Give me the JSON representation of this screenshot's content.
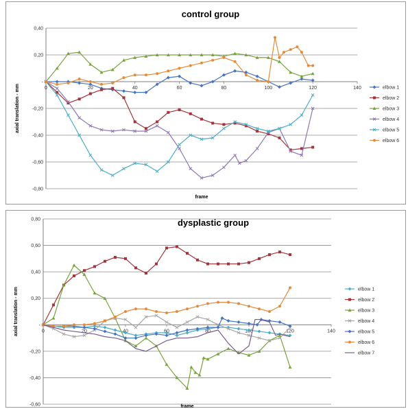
{
  "chart_data": [
    {
      "type": "line",
      "title": "control group",
      "xlabel": "frame",
      "ylabel": "axial translation - mm",
      "xlim": [
        0,
        140
      ],
      "ylim": [
        -0.8,
        0.4
      ],
      "x_ticks": [
        "0",
        "20",
        "40",
        "60",
        "80",
        "100",
        "120",
        "140"
      ],
      "y_ticks": [
        "0,40",
        "0,20",
        "-",
        "-0,20",
        "-0,40",
        "-0,60",
        "-0,80"
      ],
      "grid": "horizontal",
      "legend": "right",
      "series": [
        {
          "name": "elbow 1",
          "color": "#4472c4",
          "marker": "diamond",
          "x": [
            0,
            5,
            10,
            15,
            20,
            25,
            30,
            35,
            40,
            45,
            50,
            55,
            60,
            65,
            70,
            75,
            80,
            85,
            90,
            95,
            100,
            105,
            110,
            115,
            120
          ],
          "y": [
            0,
            0,
            0,
            -0.01,
            -0.02,
            -0.05,
            -0.06,
            -0.07,
            -0.08,
            -0.08,
            -0.02,
            0.03,
            0.04,
            -0.01,
            -0.03,
            0.0,
            0.05,
            0.08,
            0.07,
            0.04,
            0.0,
            -0.04,
            -0.01,
            0.02,
            0.01
          ]
        },
        {
          "name": "elbow 2",
          "color": "#a5333a",
          "marker": "square",
          "x": [
            0,
            5,
            10,
            15,
            20,
            25,
            30,
            35,
            40,
            45,
            50,
            55,
            60,
            65,
            70,
            75,
            80,
            85,
            90,
            95,
            100,
            105,
            110,
            115,
            120
          ],
          "y": [
            0,
            -0.08,
            -0.16,
            -0.13,
            -0.09,
            -0.06,
            -0.05,
            -0.12,
            -0.3,
            -0.35,
            -0.3,
            -0.23,
            -0.21,
            -0.24,
            -0.28,
            -0.31,
            -0.32,
            -0.31,
            -0.33,
            -0.37,
            -0.39,
            -0.42,
            -0.51,
            -0.5,
            -0.49
          ]
        },
        {
          "name": "elbow 3",
          "color": "#77a33a",
          "marker": "triangle",
          "x": [
            0,
            5,
            10,
            15,
            20,
            25,
            30,
            35,
            40,
            45,
            50,
            55,
            60,
            65,
            70,
            75,
            80,
            85,
            90,
            95,
            100,
            105,
            110,
            115,
            120
          ],
          "y": [
            0,
            0.1,
            0.21,
            0.22,
            0.13,
            0.07,
            0.09,
            0.16,
            0.18,
            0.19,
            0.2,
            0.2,
            0.2,
            0.2,
            0.2,
            0.2,
            0.19,
            0.21,
            0.2,
            0.18,
            0.18,
            0.15,
            0.07,
            0.04,
            0.06
          ]
        },
        {
          "name": "elbow 4",
          "color": "#8e76b4",
          "marker": "x",
          "x": [
            0,
            5,
            10,
            15,
            20,
            25,
            30,
            35,
            40,
            45,
            50,
            55,
            60,
            65,
            70,
            75,
            80,
            85,
            87,
            90,
            95,
            100,
            105,
            110,
            115,
            120
          ],
          "y": [
            0,
            -0.05,
            -0.15,
            -0.27,
            -0.33,
            -0.36,
            -0.37,
            -0.36,
            -0.37,
            -0.37,
            -0.33,
            -0.38,
            -0.5,
            -0.65,
            -0.72,
            -0.7,
            -0.64,
            -0.55,
            -0.61,
            -0.59,
            -0.5,
            -0.38,
            -0.35,
            -0.52,
            -0.55,
            -0.2
          ]
        },
        {
          "name": "elbow 5",
          "color": "#4bacc6",
          "marker": "x",
          "x": [
            0,
            5,
            10,
            15,
            20,
            25,
            30,
            35,
            40,
            45,
            50,
            55,
            60,
            65,
            70,
            75,
            80,
            85,
            90,
            95,
            100,
            105,
            110,
            115,
            120
          ],
          "y": [
            0,
            -0.1,
            -0.25,
            -0.4,
            -0.55,
            -0.66,
            -0.7,
            -0.65,
            -0.61,
            -0.62,
            -0.67,
            -0.6,
            -0.47,
            -0.4,
            -0.43,
            -0.42,
            -0.35,
            -0.3,
            -0.32,
            -0.35,
            -0.37,
            -0.35,
            -0.32,
            -0.25,
            -0.1
          ]
        },
        {
          "name": "elbow 6",
          "color": "#e48b3b",
          "marker": "circle",
          "x": [
            0,
            5,
            10,
            15,
            20,
            25,
            30,
            35,
            40,
            45,
            50,
            55,
            60,
            65,
            70,
            75,
            80,
            85,
            90,
            95,
            100,
            103,
            105,
            107,
            110,
            113,
            115,
            118,
            120
          ],
          "y": [
            0,
            -0.02,
            -0.01,
            0.02,
            0.0,
            -0.02,
            -0.01,
            0.03,
            0.05,
            0.05,
            0.06,
            0.08,
            0.1,
            0.12,
            0.14,
            0.16,
            0.18,
            0.15,
            0.05,
            0.01,
            0.0,
            0.33,
            0.18,
            0.22,
            0.24,
            0.26,
            0.22,
            0.12,
            0.12
          ]
        }
      ]
    },
    {
      "type": "line",
      "title": "dysplastic group",
      "xlabel": "frame",
      "ylabel": "axial translation - mm",
      "xlim": [
        0,
        140
      ],
      "ylim": [
        -0.6,
        0.8
      ],
      "x_ticks": [
        "0",
        "20",
        "40",
        "60",
        "80",
        "100",
        "120",
        "140"
      ],
      "y_ticks": [
        "0,80",
        "0,60",
        "0,40",
        "0,20",
        "-",
        "-0,20",
        "-0,40",
        "-0,60"
      ],
      "grid": "horizontal",
      "legend": "right",
      "series": [
        {
          "name": "elbow 1",
          "color": "#4bacc6",
          "marker": "diamond",
          "x": [
            0,
            5,
            10,
            15,
            20,
            25,
            30,
            35,
            40,
            45,
            50,
            55,
            60,
            65,
            70,
            75,
            80,
            85,
            90,
            95,
            100,
            105,
            110,
            115,
            120
          ],
          "y": [
            0,
            -0.01,
            -0.02,
            -0.02,
            -0.02,
            -0.01,
            -0.02,
            -0.04,
            -0.06,
            -0.08,
            -0.07,
            -0.06,
            -0.06,
            -0.08,
            -0.06,
            -0.04,
            -0.03,
            -0.02,
            -0.02,
            -0.03,
            -0.04,
            -0.05,
            -0.06,
            -0.07,
            -0.08
          ]
        },
        {
          "name": "elbow 2",
          "color": "#a5333a",
          "marker": "square",
          "x": [
            0,
            5,
            10,
            15,
            20,
            25,
            30,
            35,
            40,
            45,
            50,
            55,
            60,
            65,
            70,
            75,
            80,
            85,
            90,
            95,
            100,
            105,
            110,
            115,
            120
          ],
          "y": [
            0,
            0.15,
            0.3,
            0.37,
            0.41,
            0.44,
            0.48,
            0.51,
            0.5,
            0.43,
            0.39,
            0.46,
            0.58,
            0.59,
            0.54,
            0.49,
            0.46,
            0.46,
            0.46,
            0.46,
            0.47,
            0.5,
            0.53,
            0.55,
            0.53
          ]
        },
        {
          "name": "elbow 3",
          "color": "#77a33a",
          "marker": "triangle",
          "x": [
            0,
            5,
            10,
            15,
            20,
            25,
            30,
            35,
            40,
            45,
            50,
            55,
            60,
            65,
            70,
            72,
            74,
            76,
            78,
            80,
            85,
            90,
            95,
            100,
            105,
            110,
            115,
            120
          ],
          "y": [
            0,
            0.05,
            0.3,
            0.45,
            0.38,
            0.24,
            0.2,
            0.05,
            -0.12,
            -0.16,
            -0.1,
            -0.16,
            -0.3,
            -0.4,
            -0.48,
            -0.32,
            -0.36,
            -0.38,
            -0.25,
            -0.26,
            -0.22,
            -0.18,
            -0.21,
            -0.23,
            -0.2,
            -0.12,
            -0.08,
            -0.32
          ]
        },
        {
          "name": "elbow 4",
          "color": "#a6a6a6",
          "marker": "x",
          "x": [
            0,
            5,
            10,
            15,
            20,
            25,
            30,
            35,
            40,
            45,
            50,
            55,
            60,
            65,
            70,
            75,
            80,
            85,
            90,
            95,
            100,
            105,
            110,
            115,
            120
          ],
          "y": [
            0,
            -0.03,
            -0.07,
            -0.09,
            -0.08,
            -0.04,
            0.03,
            0.05,
            0.04,
            -0.02,
            0.06,
            0.07,
            0.02,
            -0.02,
            0.02,
            0.06,
            0.04,
            0.0,
            -0.03,
            -0.06,
            -0.08,
            -0.1,
            -0.12,
            -0.1,
            -0.02
          ]
        },
        {
          "name": "elbow 5",
          "color": "#4472c4",
          "marker": "diamond",
          "x": [
            0,
            5,
            10,
            15,
            20,
            25,
            30,
            35,
            40,
            45,
            50,
            55,
            60,
            65,
            70,
            75,
            80,
            85,
            87,
            90,
            95,
            100,
            104,
            106,
            110,
            115,
            120
          ],
          "y": [
            0,
            -0.01,
            -0.01,
            -0.01,
            -0.02,
            -0.03,
            -0.05,
            -0.07,
            -0.1,
            -0.1,
            -0.08,
            -0.07,
            -0.08,
            -0.06,
            -0.04,
            -0.03,
            -0.02,
            -0.02,
            0.05,
            0.03,
            0.02,
            0.01,
            0.0,
            0.04,
            0.03,
            0.02,
            -0.01
          ]
        },
        {
          "name": "elbow 6",
          "color": "#e48b3b",
          "marker": "circle",
          "x": [
            0,
            5,
            10,
            15,
            20,
            25,
            30,
            35,
            40,
            45,
            50,
            55,
            60,
            65,
            70,
            75,
            80,
            85,
            90,
            95,
            100,
            105,
            110,
            115,
            120
          ],
          "y": [
            0,
            -0.01,
            -0.01,
            0.0,
            0.0,
            0.01,
            0.03,
            0.06,
            0.1,
            0.12,
            0.12,
            0.1,
            0.09,
            0.1,
            0.12,
            0.14,
            0.16,
            0.17,
            0.17,
            0.16,
            0.14,
            0.12,
            0.1,
            0.14,
            0.28
          ]
        },
        {
          "name": "elbow 7",
          "color": "#7a5c8e",
          "marker": "none",
          "x": [
            0,
            5,
            10,
            15,
            20,
            25,
            30,
            35,
            40,
            45,
            50,
            55,
            60,
            65,
            70,
            75,
            80,
            85,
            90,
            95,
            100,
            103,
            105,
            108,
            110,
            113,
            115,
            120
          ],
          "y": [
            0,
            -0.02,
            -0.04,
            -0.05,
            -0.06,
            -0.07,
            -0.09,
            -0.1,
            -0.12,
            -0.18,
            -0.2,
            -0.16,
            -0.12,
            -0.1,
            -0.1,
            -0.09,
            -0.06,
            -0.04,
            -0.14,
            -0.22,
            -0.16,
            0.04,
            0.04,
            0.03,
            0.02,
            -0.08,
            -0.07,
            -0.09
          ]
        }
      ]
    }
  ]
}
